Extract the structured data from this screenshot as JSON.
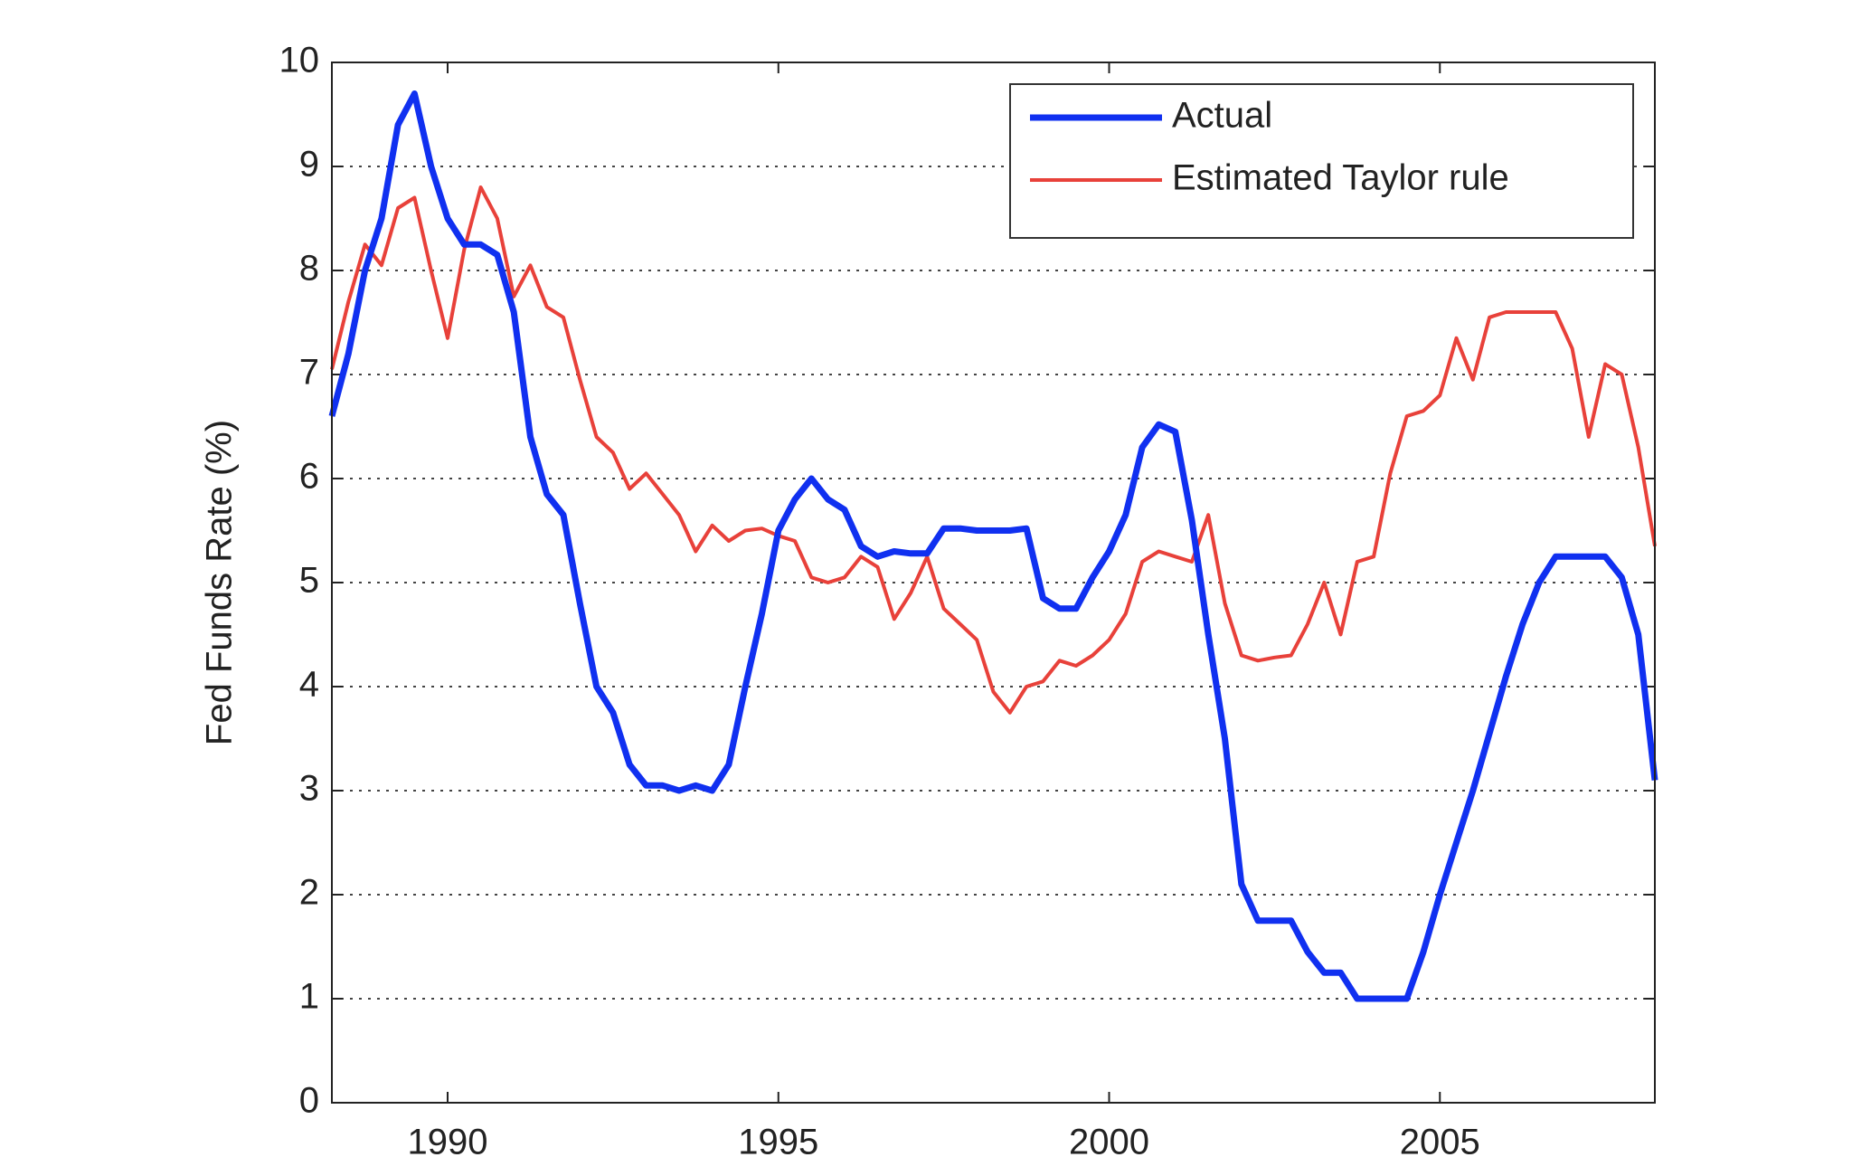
{
  "chart_data": {
    "type": "line",
    "ylabel": "Fed Funds Rate (%)",
    "x": [
      1988.25,
      1988.5,
      1988.75,
      1989,
      1989.25,
      1989.5,
      1989.75,
      1990,
      1990.25,
      1990.5,
      1990.75,
      1991,
      1991.25,
      1991.5,
      1991.75,
      1992,
      1992.25,
      1992.5,
      1992.75,
      1993,
      1993.25,
      1993.5,
      1993.75,
      1994,
      1994.25,
      1994.5,
      1994.75,
      1995,
      1995.25,
      1995.5,
      1995.75,
      1996,
      1996.25,
      1996.5,
      1996.75,
      1997,
      1997.25,
      1997.5,
      1997.75,
      1998,
      1998.25,
      1998.5,
      1998.75,
      1999,
      1999.25,
      1999.5,
      1999.75,
      2000,
      2000.25,
      2000.5,
      2000.75,
      2001,
      2001.25,
      2001.5,
      2001.75,
      2002,
      2002.25,
      2002.5,
      2002.75,
      2003,
      2003.25,
      2003.5,
      2003.75,
      2004,
      2004.25,
      2004.5,
      2004.75,
      2005,
      2005.25,
      2005.5,
      2005.75,
      2006,
      2006.25,
      2006.5,
      2006.75,
      2007,
      2007.25,
      2007.5,
      2007.75,
      2008,
      2008.25
    ],
    "series": [
      {
        "name": "Actual",
        "color": "#1030f0",
        "width": 7,
        "values": [
          6.6,
          7.2,
          8.0,
          8.5,
          9.4,
          9.7,
          9.0,
          8.5,
          8.25,
          8.25,
          8.15,
          7.6,
          6.4,
          5.85,
          5.65,
          4.8,
          4.0,
          3.75,
          3.25,
          3.05,
          3.05,
          3.0,
          3.05,
          3.0,
          3.25,
          4.0,
          4.7,
          5.5,
          5.8,
          6.0,
          5.8,
          5.7,
          5.35,
          5.25,
          5.3,
          5.28,
          5.28,
          5.52,
          5.52,
          5.5,
          5.5,
          5.5,
          5.52,
          4.85,
          4.75,
          4.75,
          5.05,
          5.3,
          5.65,
          6.3,
          6.52,
          6.45,
          5.6,
          4.5,
          3.5,
          2.1,
          1.75,
          1.75,
          1.75,
          1.45,
          1.25,
          1.25,
          1.0,
          1.0,
          1.0,
          1.0,
          1.45,
          2.0,
          2.5,
          3.0,
          3.55,
          4.1,
          4.6,
          5.0,
          5.25,
          5.25,
          5.25,
          5.25,
          5.05,
          4.5,
          3.1
        ]
      },
      {
        "name": "Estimated Taylor rule",
        "color": "#e8413a",
        "width": 4,
        "values": [
          7.05,
          7.7,
          8.25,
          8.05,
          8.6,
          8.7,
          8.0,
          7.35,
          8.2,
          8.8,
          8.5,
          7.75,
          8.05,
          7.65,
          7.55,
          6.95,
          6.4,
          6.25,
          5.9,
          6.05,
          5.85,
          5.65,
          5.3,
          5.55,
          5.4,
          5.5,
          5.52,
          5.45,
          5.4,
          5.05,
          5.0,
          5.05,
          5.25,
          5.15,
          4.65,
          4.9,
          5.25,
          4.75,
          4.6,
          4.45,
          3.95,
          3.75,
          4.0,
          4.05,
          4.25,
          4.2,
          4.3,
          4.45,
          4.7,
          5.2,
          5.3,
          5.25,
          5.2,
          5.65,
          4.8,
          4.3,
          4.25,
          4.28,
          4.3,
          4.6,
          5.0,
          4.5,
          5.2,
          5.25,
          6.05,
          6.6,
          6.65,
          6.8,
          7.35,
          6.95,
          7.55,
          7.6,
          7.6,
          7.6,
          7.6,
          7.25,
          6.4,
          7.1,
          7.0,
          6.3,
          5.35
        ]
      }
    ],
    "xlim": [
      1988.25,
      2008.25
    ],
    "xticks": [
      1990,
      1995,
      2000,
      2005
    ],
    "ylim": [
      0,
      10
    ],
    "yticks": [
      0,
      1,
      2,
      3,
      4,
      5,
      6,
      7,
      8,
      9,
      10
    ],
    "grid": true,
    "legend": "upper right"
  }
}
